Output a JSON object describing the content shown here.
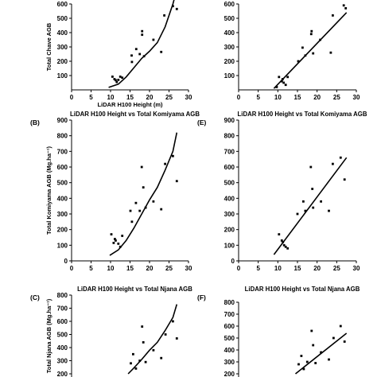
{
  "figure": {
    "colors": {
      "axis": "#000000",
      "points": "#000000",
      "fit": "#000000",
      "background": "#ffffff"
    }
  },
  "chart_data": [
    {
      "id": "A",
      "type": "scatter",
      "panel_label": "",
      "title": "",
      "xlabel": "LiDAR H100 Height (m)",
      "ylabel": "Total Chave AGB",
      "xlim": [
        0,
        30
      ],
      "ylim": [
        0,
        600
      ],
      "xticks": [
        0,
        5,
        10,
        15,
        20,
        25,
        30
      ],
      "yticks": [
        100,
        200,
        300,
        400,
        500,
        600
      ],
      "xtick_labels": [
        "0",
        "5",
        "10",
        "15",
        "20",
        "25",
        "30"
      ],
      "ytick_labels": [
        "100",
        "200",
        "300",
        "400",
        "500",
        "600"
      ],
      "show_xticks": true,
      "fit": "power",
      "points": [
        [
          10.5,
          92
        ],
        [
          11.0,
          75
        ],
        [
          11.3,
          68
        ],
        [
          11.6,
          55
        ],
        [
          12.0,
          70
        ],
        [
          12.5,
          92
        ],
        [
          13.0,
          85
        ],
        [
          15.4,
          240
        ],
        [
          15.5,
          195
        ],
        [
          16.6,
          285
        ],
        [
          17.5,
          250
        ],
        [
          18.1,
          385
        ],
        [
          18.1,
          410
        ],
        [
          18.6,
          235
        ],
        [
          21.0,
          350
        ],
        [
          23.0,
          265
        ],
        [
          23.8,
          520
        ],
        [
          26.0,
          585
        ],
        [
          27.0,
          565
        ]
      ],
      "fit_line": [
        [
          9.5,
          17
        ],
        [
          12,
          40
        ],
        [
          14,
          90
        ],
        [
          16,
          155
        ],
        [
          18,
          220
        ],
        [
          20,
          270
        ],
        [
          22,
          330
        ],
        [
          24,
          440
        ],
        [
          26,
          600
        ],
        [
          27,
          700
        ]
      ]
    },
    {
      "id": "D",
      "type": "scatter",
      "panel_label": "",
      "title": "",
      "xlabel": "",
      "ylabel": "",
      "xlim": [
        0,
        30
      ],
      "ylim": [
        0,
        600
      ],
      "xticks": [
        0,
        5,
        10,
        15,
        20,
        25,
        30
      ],
      "yticks": [
        100,
        200,
        300,
        400,
        500,
        600
      ],
      "xtick_labels": [
        "0",
        "5",
        "10",
        "15",
        "20",
        "25",
        "30"
      ],
      "ytick_labels": [
        "100",
        "200",
        "300",
        "400",
        "500",
        "600"
      ],
      "show_xticks": true,
      "fit": "linear",
      "points": [
        [
          9.7,
          20
        ],
        [
          10.3,
          90
        ],
        [
          11.0,
          60
        ],
        [
          11.2,
          75
        ],
        [
          11.5,
          50
        ],
        [
          12.0,
          35
        ],
        [
          12.5,
          90
        ],
        [
          15.2,
          200
        ],
        [
          16.3,
          295
        ],
        [
          17.0,
          240
        ],
        [
          18.5,
          390
        ],
        [
          18.6,
          410
        ],
        [
          19.0,
          255
        ],
        [
          20.8,
          350
        ],
        [
          23.5,
          260
        ],
        [
          24.0,
          520
        ],
        [
          26.8,
          590
        ],
        [
          27.3,
          570
        ]
      ],
      "fit_line": [
        [
          9.0,
          10
        ],
        [
          27.5,
          540
        ]
      ]
    },
    {
      "id": "B",
      "type": "scatter",
      "panel_label": "(B)",
      "title": "LiDAR H100 Height vs Total Komiyama AGB",
      "xlabel": "",
      "ylabel": "Total Komiyama AGB (Mg.ha⁻¹)",
      "xlim": [
        0,
        30
      ],
      "ylim": [
        0,
        900
      ],
      "xticks": [
        0,
        5,
        10,
        15,
        20,
        25,
        30
      ],
      "yticks": [
        0,
        100,
        200,
        300,
        400,
        500,
        600,
        700,
        800,
        900
      ],
      "xtick_labels": [
        "0",
        "5",
        "10",
        "15",
        "20",
        "25",
        "30"
      ],
      "ytick_labels": [
        "0",
        "100",
        "200",
        "300",
        "400",
        "500",
        "600",
        "700",
        "800",
        "900"
      ],
      "show_xticks": true,
      "fit": "power",
      "points": [
        [
          10.2,
          170
        ],
        [
          10.8,
          115
        ],
        [
          11.1,
          140
        ],
        [
          11.3,
          130
        ],
        [
          12.0,
          110
        ],
        [
          12.5,
          90
        ],
        [
          13.0,
          160
        ],
        [
          15.1,
          320
        ],
        [
          15.5,
          250
        ],
        [
          16.5,
          370
        ],
        [
          17.5,
          320
        ],
        [
          18.0,
          600
        ],
        [
          18.4,
          470
        ],
        [
          19.0,
          340
        ],
        [
          21.0,
          380
        ],
        [
          23.0,
          330
        ],
        [
          24.0,
          620
        ],
        [
          26.0,
          670
        ],
        [
          27.0,
          510
        ]
      ],
      "fit_line": [
        [
          9.8,
          35
        ],
        [
          12,
          70
        ],
        [
          14,
          130
        ],
        [
          16,
          210
        ],
        [
          18,
          300
        ],
        [
          20,
          390
        ],
        [
          22,
          470
        ],
        [
          24,
          580
        ],
        [
          26,
          700
        ],
        [
          27,
          820
        ]
      ]
    },
    {
      "id": "E",
      "type": "scatter",
      "panel_label": "(E)",
      "title": "LiDAR H100 Height vs Total Komiyama AGB",
      "xlabel": "",
      "ylabel": "",
      "xlim": [
        0,
        30
      ],
      "ylim": [
        0,
        900
      ],
      "xticks": [
        0,
        5,
        10,
        15,
        20,
        25,
        30
      ],
      "yticks": [
        0,
        100,
        200,
        300,
        400,
        500,
        600,
        700,
        800,
        900
      ],
      "xtick_labels": [
        "0",
        "5",
        "10",
        "15",
        "20",
        "25",
        "30"
      ],
      "ytick_labels": [
        "0",
        "100",
        "200",
        "300",
        "400",
        "500",
        "600",
        "700",
        "800",
        "900"
      ],
      "show_xticks": true,
      "fit": "linear",
      "points": [
        [
          10.3,
          170
        ],
        [
          11.0,
          130
        ],
        [
          11.3,
          120
        ],
        [
          11.6,
          100
        ],
        [
          12.0,
          90
        ],
        [
          12.5,
          80
        ],
        [
          15.0,
          300
        ],
        [
          16.5,
          380
        ],
        [
          17.0,
          320
        ],
        [
          18.4,
          600
        ],
        [
          18.8,
          460
        ],
        [
          19.0,
          340
        ],
        [
          21.0,
          380
        ],
        [
          23.0,
          320
        ],
        [
          24.0,
          620
        ],
        [
          26.0,
          660
        ],
        [
          27.0,
          520
        ]
      ],
      "fit_line": [
        [
          9.0,
          40
        ],
        [
          27.5,
          660
        ]
      ]
    },
    {
      "id": "C",
      "type": "scatter",
      "panel_label": "(C)",
      "title": "LiDAR H100 Height vs Total Njana AGB",
      "xlabel": "",
      "ylabel": "Total Njana AGB (Mg.ha⁻¹)",
      "xlim": [
        0,
        30
      ],
      "ylim": [
        200,
        800
      ],
      "xticks": [],
      "yticks": [
        200,
        300,
        400,
        500,
        600,
        700,
        800
      ],
      "xtick_labels": [],
      "ytick_labels": [
        "200",
        "300",
        "400",
        "500",
        "600",
        "700",
        "800"
      ],
      "show_xticks": false,
      "fit": "power",
      "points": [
        [
          15.2,
          280
        ],
        [
          15.8,
          350
        ],
        [
          16.5,
          240
        ],
        [
          17.5,
          300
        ],
        [
          18.1,
          560
        ],
        [
          18.4,
          440
        ],
        [
          19.0,
          290
        ],
        [
          21.0,
          380
        ],
        [
          23.0,
          320
        ],
        [
          24.1,
          500
        ],
        [
          26.0,
          600
        ],
        [
          27.0,
          470
        ]
      ],
      "fit_line": [
        [
          14.5,
          200
        ],
        [
          16,
          245
        ],
        [
          18,
          310
        ],
        [
          20,
          380
        ],
        [
          22,
          440
        ],
        [
          24,
          530
        ],
        [
          26,
          630
        ],
        [
          27,
          730
        ]
      ]
    },
    {
      "id": "F",
      "type": "scatter",
      "panel_label": "(F)",
      "title": "LiDAR H100 Height vs Total Njana AGB",
      "xlabel": "",
      "ylabel": "",
      "xlim": [
        0,
        30
      ],
      "ylim": [
        200,
        800
      ],
      "xticks": [],
      "yticks": [
        200,
        300,
        400,
        500,
        600,
        700,
        800
      ],
      "xtick_labels": [],
      "ytick_labels": [
        "200",
        "300",
        "400",
        "500",
        "600",
        "700",
        "800"
      ],
      "show_xticks": false,
      "fit": "linear",
      "points": [
        [
          15.3,
          280
        ],
        [
          16.0,
          350
        ],
        [
          16.6,
          240
        ],
        [
          17.5,
          300
        ],
        [
          18.6,
          560
        ],
        [
          19.0,
          440
        ],
        [
          19.6,
          290
        ],
        [
          21.0,
          380
        ],
        [
          23.0,
          320
        ],
        [
          24.2,
          500
        ],
        [
          26.0,
          600
        ],
        [
          27.0,
          470
        ]
      ],
      "fit_line": [
        [
          14.5,
          200
        ],
        [
          27.5,
          540
        ]
      ]
    }
  ]
}
